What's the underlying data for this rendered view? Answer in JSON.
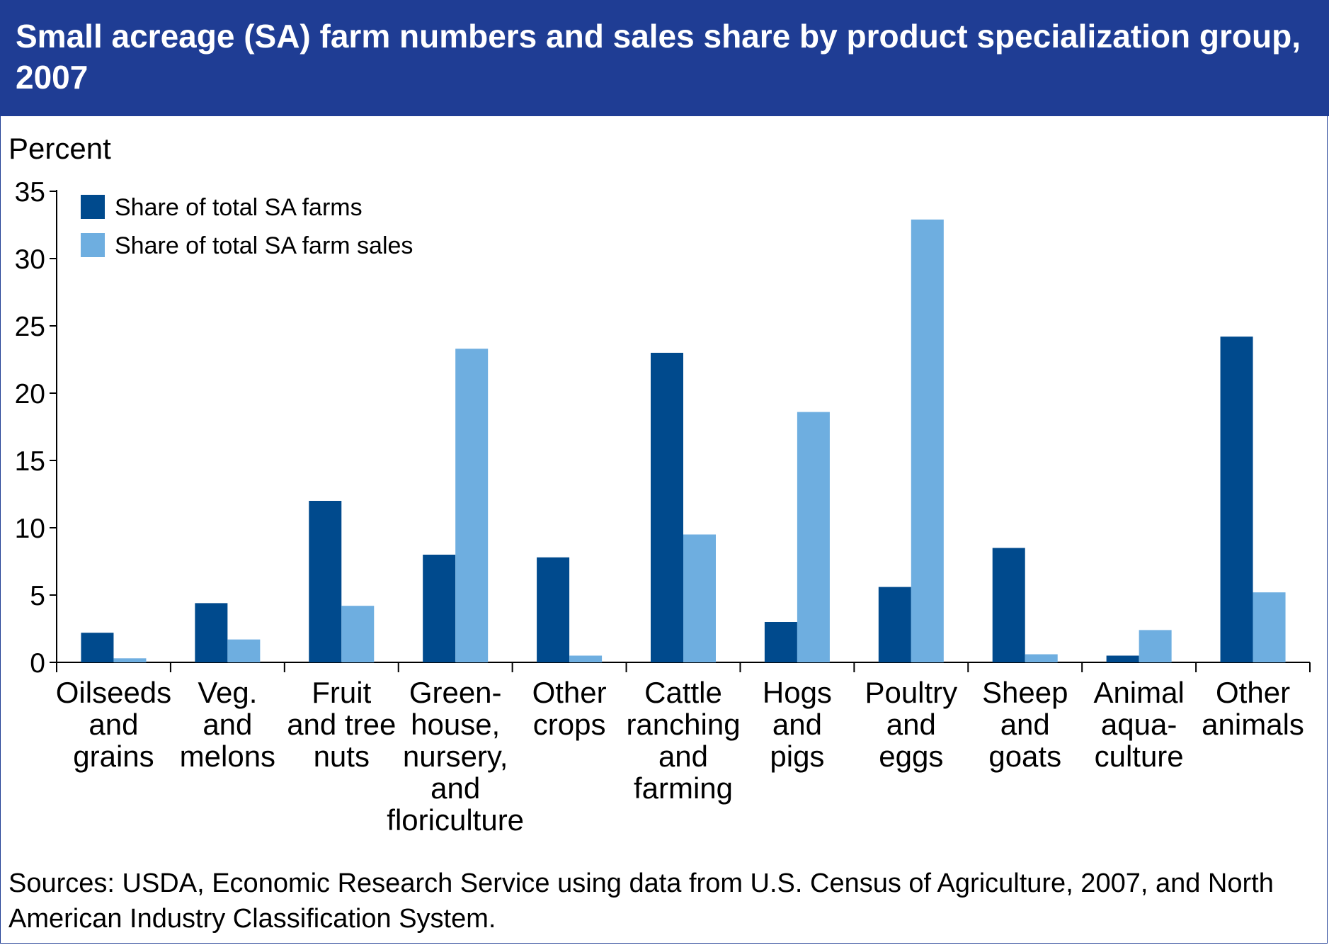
{
  "header": {
    "title": "Small acreage (SA) farm numbers and sales share by product specialization group, 2007"
  },
  "colors": {
    "title_bar": "#1f3d94",
    "series_farms": "#004a8d",
    "series_sales": "#6eaee0"
  },
  "chart_data": {
    "type": "bar",
    "title": "Small acreage (SA) farm numbers and sales share by product specialization group, 2007",
    "ylabel": "Percent",
    "xlabel": "",
    "ylim": [
      0,
      35
    ],
    "yticks": [
      0,
      5,
      10,
      15,
      20,
      25,
      30,
      35
    ],
    "grid": false,
    "legend_position": "top-left",
    "categories": [
      [
        "Oilseeds",
        "and",
        "grains"
      ],
      [
        "Veg.",
        "and",
        "melons"
      ],
      [
        "Fruit",
        "and tree",
        "nuts"
      ],
      [
        "Green-",
        "house,",
        "nursery,",
        "and",
        "floriculture"
      ],
      [
        "Other",
        "crops"
      ],
      [
        "Cattle",
        "ranching",
        "and",
        "farming"
      ],
      [
        "Hogs",
        "and",
        "pigs"
      ],
      [
        "Poultry",
        "and",
        "eggs"
      ],
      [
        "Sheep",
        "and",
        "goats"
      ],
      [
        "Animal",
        "aqua-",
        "culture"
      ],
      [
        "Other",
        "animals"
      ]
    ],
    "series": [
      {
        "name": "Share of total SA farms",
        "color": "#004a8d",
        "values": [
          2.2,
          4.4,
          12.0,
          8.0,
          7.8,
          23.0,
          3.0,
          5.6,
          8.5,
          0.5,
          24.2
        ]
      },
      {
        "name": "Share of total SA farm sales",
        "color": "#6eaee0",
        "values": [
          0.3,
          1.7,
          4.2,
          23.3,
          0.5,
          9.5,
          18.6,
          32.9,
          0.6,
          2.4,
          5.2
        ]
      }
    ]
  },
  "footer": {
    "source": "Sources: USDA, Economic Research Service using data from U.S. Census of Agriculture, 2007, and North American Industry Classification System."
  }
}
